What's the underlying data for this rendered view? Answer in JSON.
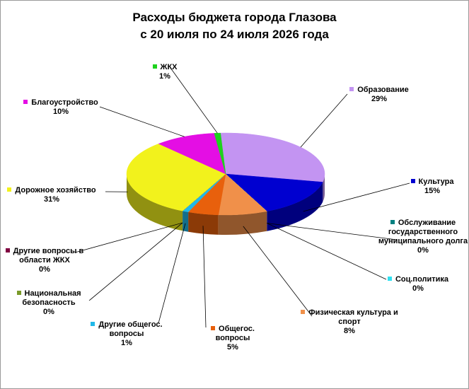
{
  "chart_data": {
    "type": "pie3d",
    "title": "Расходы бюджета города Глазова",
    "subtitle": "с 20 июля по 24 июля 2026 года",
    "categories": [
      "Образование",
      "Культура",
      "Обслуживание государственного муниципального долга",
      "Соц.политика",
      "Физическая культура и спорт",
      "Общегос. вопросы",
      "Другие общегос. вопросы",
      "Национальная безопасность",
      "Другие вопросы в области ЖКХ",
      "Дорожное хозяйство",
      "Благоустройство",
      "ЖКХ"
    ],
    "values": [
      29,
      15,
      0,
      0,
      8,
      5,
      1,
      0,
      0,
      31,
      10,
      1
    ],
    "value_labels": [
      "29%",
      "15%",
      "0%",
      "0%",
      "8%",
      "5%",
      "1%",
      "0%",
      "0%",
      "31%",
      "10%",
      "1%"
    ],
    "colors": [
      "#c394f2",
      "#0000d0",
      "#008080",
      "#30e0f0",
      "#f0904a",
      "#e8600c",
      "#20b8e8",
      "#7a9a2a",
      "#800040",
      "#f2f21c",
      "#e40ee4",
      "#1ed21e"
    ]
  }
}
